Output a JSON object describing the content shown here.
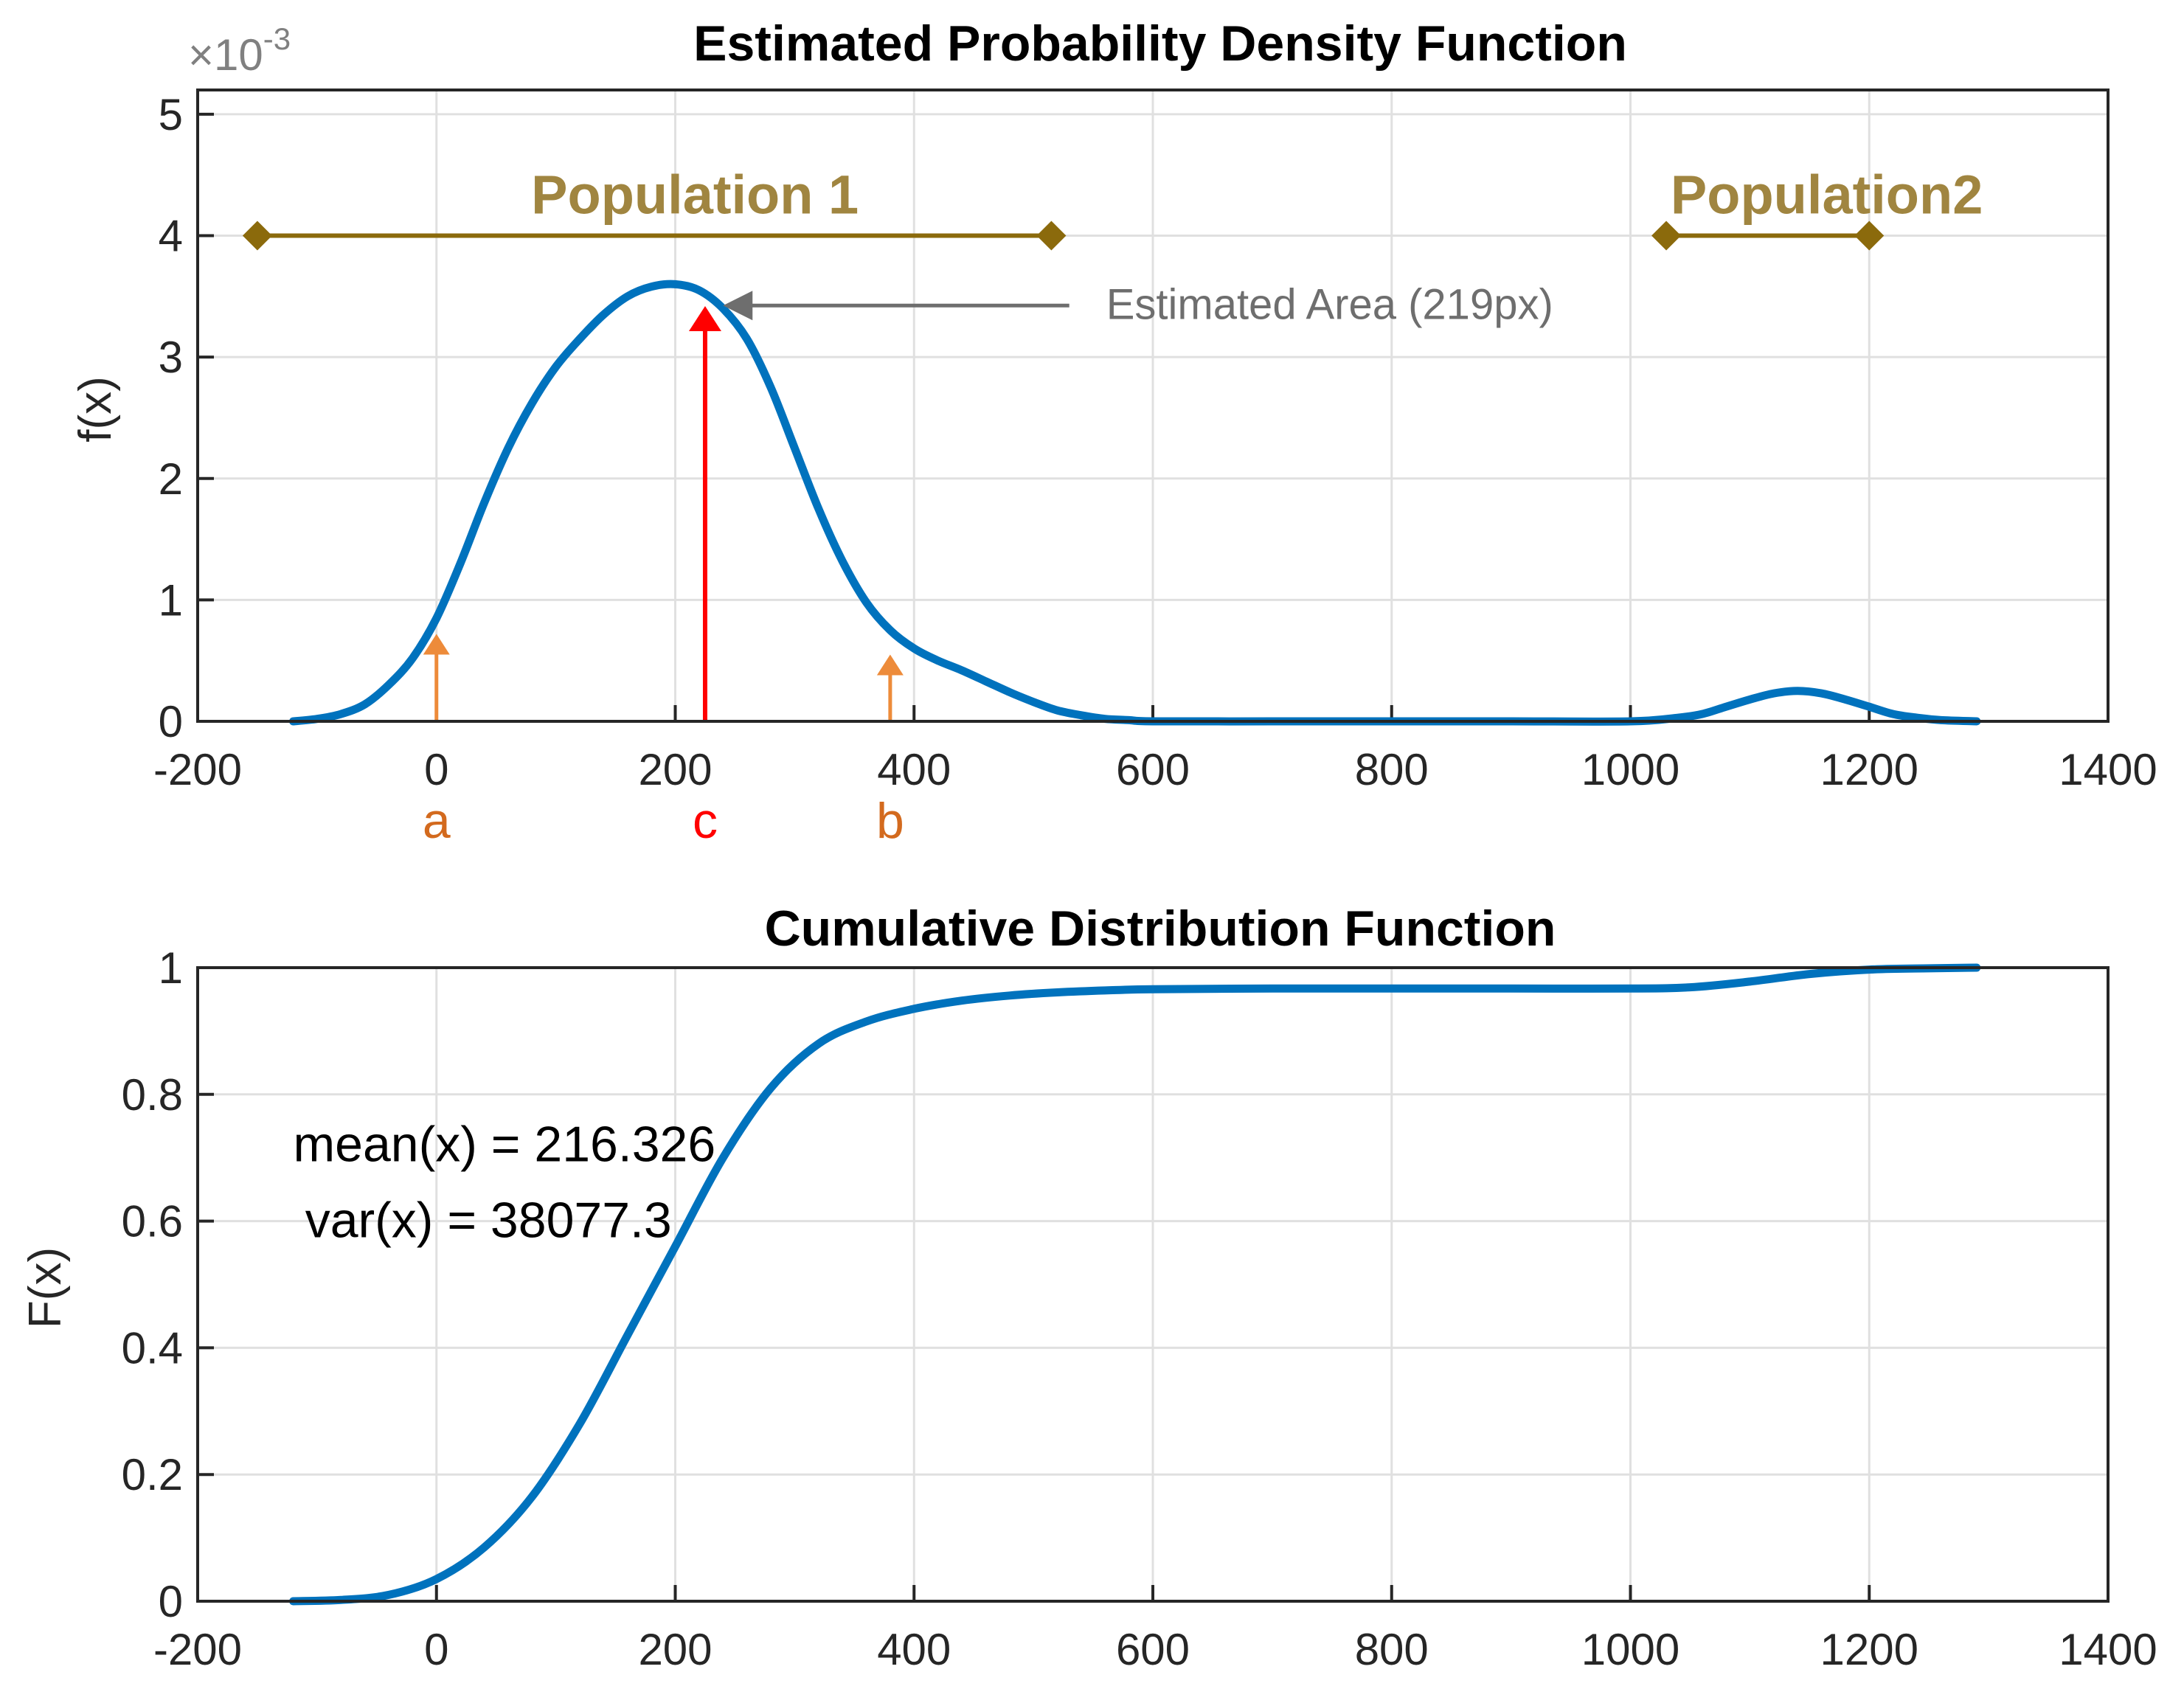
{
  "colors": {
    "curve": "#0072BD",
    "population": "#8B6A0C",
    "population_text": "#A08540",
    "red": "#FF0000",
    "orange": "#ED8B3A",
    "orange_text": "#D36A1E",
    "grid": "#E0E0E0",
    "axis": "#262626",
    "annotation_gray": "#666666"
  },
  "chart_data": [
    {
      "type": "line",
      "title": "Estimated Probability Density Function",
      "xlabel": "",
      "ylabel": "f(x)",
      "y_exponent": "×10",
      "y_exponent_power": "-3",
      "xlim": [
        -200,
        1400
      ],
      "ylim": [
        0,
        5.2
      ],
      "xticks": [
        -200,
        0,
        200,
        400,
        600,
        800,
        1000,
        1200,
        1400
      ],
      "yticks": [
        0,
        1,
        2,
        3,
        4,
        5
      ],
      "grid": true,
      "series": [
        {
          "name": "f(x)",
          "x": [
            -120,
            -100,
            -80,
            -60,
            -40,
            -20,
            0,
            20,
            40,
            60,
            80,
            100,
            120,
            140,
            160,
            180,
            200,
            220,
            240,
            260,
            280,
            300,
            320,
            340,
            360,
            380,
            400,
            420,
            440,
            460,
            480,
            500,
            520,
            540,
            560,
            580,
            600,
            700,
            800,
            900,
            1000,
            1040,
            1060,
            1080,
            1100,
            1120,
            1140,
            1160,
            1180,
            1200,
            1220,
            1240,
            1260,
            1290
          ],
          "y": [
            0.0,
            0.02,
            0.06,
            0.14,
            0.3,
            0.52,
            0.85,
            1.3,
            1.8,
            2.25,
            2.62,
            2.92,
            3.15,
            3.35,
            3.5,
            3.58,
            3.6,
            3.55,
            3.4,
            3.15,
            2.75,
            2.25,
            1.75,
            1.32,
            0.98,
            0.75,
            0.6,
            0.5,
            0.42,
            0.33,
            0.24,
            0.16,
            0.09,
            0.05,
            0.02,
            0.01,
            0.0,
            0.0,
            0.0,
            0.0,
            0.0,
            0.03,
            0.06,
            0.12,
            0.18,
            0.23,
            0.25,
            0.23,
            0.18,
            0.12,
            0.06,
            0.03,
            0.01,
            0.0
          ]
        }
      ],
      "populations": [
        {
          "label": "Population 1",
          "x_start": -150,
          "x_end": 515,
          "y": 4.0
        },
        {
          "label": "Population2",
          "x_start": 1030,
          "x_end": 1200,
          "y": 4.0
        }
      ],
      "markers": [
        {
          "label": "a",
          "x": 0,
          "y_start": 0,
          "y_end": 0.72,
          "color": "orange"
        },
        {
          "label": "c",
          "x": 225,
          "y_start": 0,
          "y_end": 3.42,
          "color": "red"
        },
        {
          "label": "b",
          "x": 380,
          "y_start": 0,
          "y_end": 0.55,
          "color": "orange"
        }
      ],
      "annotation": {
        "text": "Estimated Area (219px)",
        "x_from": 530,
        "x_to": 240,
        "y": 3.4
      }
    },
    {
      "type": "line",
      "title": "Cumulative Distribution Function",
      "xlabel": "",
      "ylabel": "F(x)",
      "xlim": [
        -200,
        1400
      ],
      "ylim": [
        0,
        1
      ],
      "xticks": [
        -200,
        0,
        200,
        400,
        600,
        800,
        1000,
        1200,
        1400
      ],
      "yticks": [
        0,
        0.2,
        0.4,
        0.6,
        0.8,
        1
      ],
      "grid": true,
      "series": [
        {
          "name": "F(x)",
          "x": [
            -120,
            -80,
            -40,
            0,
            40,
            80,
            120,
            160,
            200,
            240,
            280,
            320,
            360,
            400,
            440,
            480,
            520,
            560,
            600,
            700,
            800,
            900,
            1000,
            1050,
            1100,
            1150,
            1200,
            1250,
            1290
          ],
          "y": [
            0.0,
            0.002,
            0.01,
            0.035,
            0.085,
            0.165,
            0.28,
            0.42,
            0.56,
            0.7,
            0.81,
            0.88,
            0.915,
            0.935,
            0.948,
            0.956,
            0.961,
            0.964,
            0.966,
            0.967,
            0.967,
            0.967,
            0.967,
            0.969,
            0.978,
            0.99,
            0.997,
            0.999,
            1.0
          ]
        }
      ],
      "text_annotations": [
        {
          "text": "mean(x) = 216.326",
          "x": -120,
          "y": 0.72
        },
        {
          "text": "var(x) = 38077.3",
          "x": -110,
          "y": 0.6
        }
      ]
    }
  ]
}
